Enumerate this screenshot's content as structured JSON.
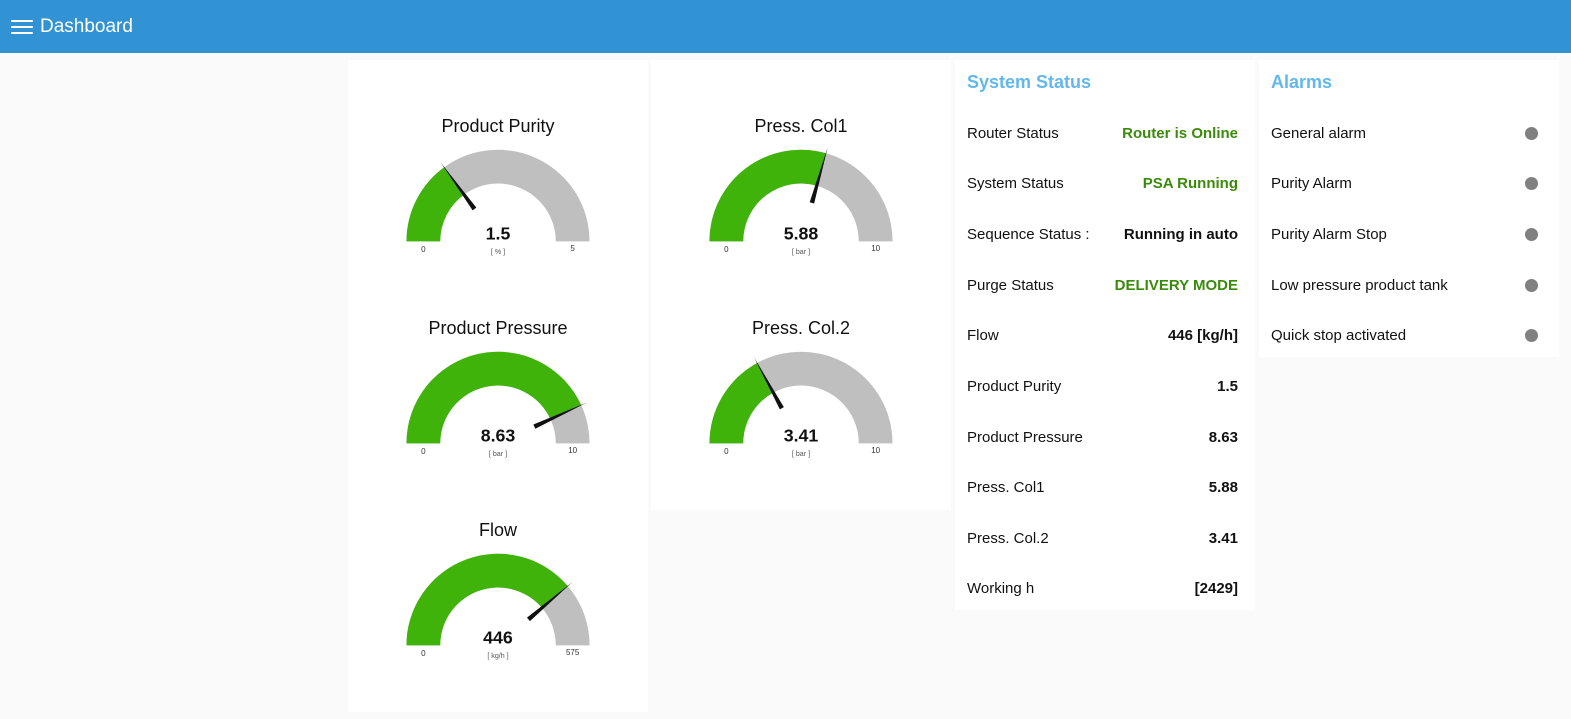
{
  "header": {
    "title": "Dashboard",
    "menu_icon": "hamburger-menu-icon"
  },
  "gauges": [
    {
      "id": "product-purity",
      "title": "Product Purity",
      "value": 1.5,
      "display": "1.5",
      "unit": "[ % ]",
      "min": 0,
      "max": 5,
      "min_label": "0",
      "max_label": "5",
      "column": 1,
      "slot": 0
    },
    {
      "id": "product-pressure",
      "title": "Product Pressure",
      "value": 8.63,
      "display": "8.63",
      "unit": "[ bar ]",
      "min": 0,
      "max": 10,
      "min_label": "0",
      "max_label": "10",
      "column": 1,
      "slot": 1
    },
    {
      "id": "flow",
      "title": "Flow",
      "value": 446,
      "display": "446",
      "unit": "[ kg/h ]",
      "min": 0,
      "max": 575,
      "min_label": "0",
      "max_label": "575",
      "column": 1,
      "slot": 2
    },
    {
      "id": "press-col1",
      "title": "Press. Col1",
      "value": 5.88,
      "display": "5.88",
      "unit": "[ bar ]",
      "min": 0,
      "max": 10,
      "min_label": "0",
      "max_label": "10",
      "column": 2,
      "slot": 0
    },
    {
      "id": "press-col2",
      "title": "Press. Col.2",
      "value": 3.41,
      "display": "3.41",
      "unit": "[ bar ]",
      "min": 0,
      "max": 10,
      "min_label": "0",
      "max_label": "10",
      "column": 2,
      "slot": 1
    }
  ],
  "system_status": {
    "title": "System Status",
    "rows": [
      {
        "label": "Router Status",
        "value": "Router is Online",
        "style": "green"
      },
      {
        "label": "System Status",
        "value": "PSA Running",
        "style": "green"
      },
      {
        "label": "Sequence Status :",
        "value": "Running in auto",
        "style": "dark"
      },
      {
        "label": "Purge Status",
        "value": "DELIVERY MODE",
        "style": "green"
      },
      {
        "label": "Flow",
        "value": "446 [kg/h]",
        "style": "dark"
      },
      {
        "label": "Product Purity",
        "value": "1.5",
        "style": "dark"
      },
      {
        "label": "Product Pressure",
        "value": "8.63",
        "style": "dark"
      },
      {
        "label": "Press. Col1",
        "value": "5.88",
        "style": "dark"
      },
      {
        "label": "Press. Col.2",
        "value": "3.41",
        "style": "dark"
      },
      {
        "label": "Working h",
        "value": "[2429]",
        "style": "dark"
      }
    ]
  },
  "alarms": {
    "title": "Alarms",
    "items": [
      {
        "label": "General alarm",
        "led_color": "#808080"
      },
      {
        "label": "Purity Alarm",
        "led_color": "#808080"
      },
      {
        "label": "Purity Alarm Stop",
        "led_color": "#808080"
      },
      {
        "label": "Low pressure product tank",
        "led_color": "#808080"
      },
      {
        "label": "Quick stop activated",
        "led_color": "#808080"
      }
    ]
  },
  "colors": {
    "accent": "#3293d4",
    "gauge_fill": "#40b30b",
    "gauge_track": "#bfbfbf",
    "status_green": "#3a8a0c",
    "led_off": "#808080"
  }
}
